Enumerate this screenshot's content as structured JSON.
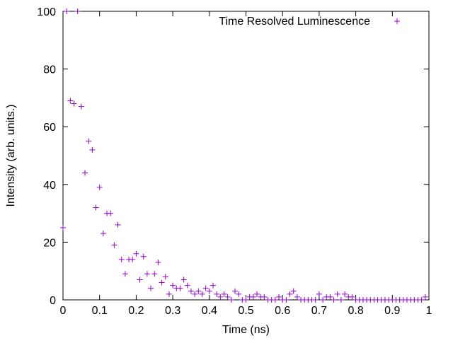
{
  "colors": {
    "series": "#9400d3",
    "axis": "#000000",
    "background": "#ffffff"
  },
  "chart_data": {
    "type": "scatter",
    "title": "",
    "xlabel": "Time (ns)",
    "ylabel": "Intensity (arb. units.)",
    "xlim": [
      0,
      1
    ],
    "ylim": [
      0,
      100
    ],
    "grid": false,
    "legend_position": "top-right",
    "marker": "plus",
    "xticks": [
      0,
      0.1,
      0.2,
      0.3,
      0.4,
      0.5,
      0.6,
      0.7,
      0.8,
      0.9,
      1
    ],
    "xtick_labels": [
      "0",
      "0.1",
      "0.2",
      "0.3",
      "0.4",
      "0.5",
      "0.6",
      "0.7",
      "0.8",
      "0.9",
      "1"
    ],
    "yticks": [
      0,
      20,
      40,
      60,
      80,
      100
    ],
    "ytick_labels": [
      "0",
      "20",
      "40",
      "60",
      "80",
      "100"
    ],
    "series": [
      {
        "name": "Time Resolved Luminescence",
        "x": [
          0.0,
          0.01,
          0.02,
          0.03,
          0.04,
          0.05,
          0.06,
          0.07,
          0.08,
          0.09,
          0.1,
          0.11,
          0.12,
          0.13,
          0.14,
          0.15,
          0.16,
          0.17,
          0.18,
          0.19,
          0.2,
          0.21,
          0.22,
          0.23,
          0.24,
          0.25,
          0.26,
          0.27,
          0.28,
          0.29,
          0.3,
          0.31,
          0.32,
          0.33,
          0.34,
          0.35,
          0.36,
          0.37,
          0.38,
          0.39,
          0.4,
          0.41,
          0.42,
          0.43,
          0.44,
          0.45,
          0.46,
          0.47,
          0.48,
          0.49,
          0.5,
          0.51,
          0.52,
          0.53,
          0.54,
          0.55,
          0.56,
          0.57,
          0.58,
          0.59,
          0.6,
          0.61,
          0.62,
          0.63,
          0.64,
          0.65,
          0.66,
          0.67,
          0.68,
          0.69,
          0.7,
          0.71,
          0.72,
          0.73,
          0.74,
          0.75,
          0.76,
          0.77,
          0.78,
          0.79,
          0.8,
          0.81,
          0.82,
          0.83,
          0.84,
          0.85,
          0.86,
          0.87,
          0.88,
          0.89,
          0.9,
          0.91,
          0.92,
          0.93,
          0.94,
          0.95,
          0.96,
          0.97,
          0.98,
          0.99
        ],
        "y": [
          25,
          100,
          69,
          68,
          100,
          67,
          44,
          55,
          52,
          32,
          39,
          23,
          30,
          30,
          19,
          26,
          14,
          9,
          14,
          14,
          16,
          7,
          15,
          9,
          4,
          9,
          13,
          6,
          8,
          2,
          5,
          4,
          4,
          7,
          5,
          3,
          2,
          3,
          2,
          4,
          3,
          5,
          2,
          1,
          2,
          1,
          0,
          3,
          2,
          0,
          0,
          1,
          1,
          2,
          1,
          1,
          0,
          0,
          0,
          1,
          0,
          0,
          2,
          3,
          1,
          0,
          0,
          0,
          0,
          0,
          2,
          0,
          1,
          1,
          0,
          2,
          0,
          2,
          1,
          1,
          0,
          0,
          0,
          0,
          0,
          0,
          0,
          0,
          0,
          0,
          0,
          0,
          0,
          0,
          0,
          0,
          0,
          0,
          0,
          1
        ]
      }
    ]
  }
}
